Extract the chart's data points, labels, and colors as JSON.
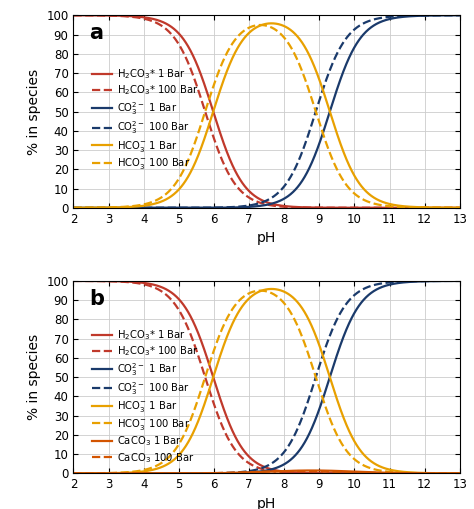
{
  "pH_range": [
    2,
    13
  ],
  "ylim": [
    0,
    100
  ],
  "yticks": [
    0,
    10,
    20,
    30,
    40,
    50,
    60,
    70,
    80,
    90,
    100
  ],
  "xticks": [
    2,
    3,
    4,
    5,
    6,
    7,
    8,
    9,
    10,
    11,
    12,
    13
  ],
  "panel_a": {
    "label": "a",
    "pKa1_1bar": 5.98,
    "pKa2_1bar": 9.3,
    "pKa1_100bar": 5.75,
    "pKa2_100bar": 8.9
  },
  "panel_b": {
    "label": "b",
    "pKa1_1bar": 5.98,
    "pKa2_1bar": 9.3,
    "pKa1_100bar": 5.75,
    "pKa2_100bar": 8.9
  },
  "colors": {
    "H2CO3": "#C0392B",
    "CO3": "#1A3A6B",
    "HCO3": "#E8A000",
    "CaCO3": "#D35400"
  },
  "lw": 1.6,
  "figsize": [
    4.74,
    5.09
  ],
  "dpi": 100,
  "xlabel": "pH",
  "ylabel": "% in species",
  "bg_color": "#FFFFFF",
  "grid_color": "#CCCCCC",
  "legend_fontsize": 7.2,
  "tick_fontsize": 8.5,
  "label_fontsize": 10
}
